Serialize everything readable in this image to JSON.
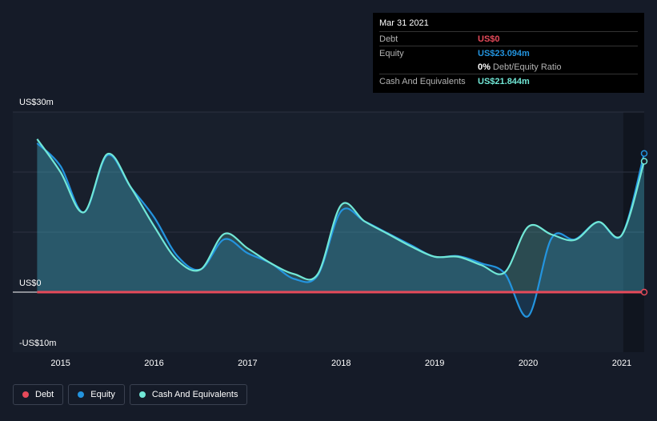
{
  "tooltip": {
    "date": "Mar 31 2021",
    "debt_label": "Debt",
    "debt_value": "US$0",
    "equity_label": "Equity",
    "equity_value": "US$23.094m",
    "ratio_value": "0%",
    "ratio_label": "Debt/Equity Ratio",
    "cash_label": "Cash And Equivalents",
    "cash_value": "US$21.844m"
  },
  "legend": {
    "debt": "Debt",
    "equity": "Equity",
    "cash": "Cash And Equivalents"
  },
  "colors": {
    "debt": "#e64a5a",
    "equity": "#2394df",
    "cash": "#71e7d6",
    "background": "#151b28"
  },
  "chart_data": {
    "type": "line",
    "title": "",
    "xlabel": "",
    "ylabel": "",
    "ylim": [
      -10,
      30
    ],
    "y_tick_labels": [
      "US$30m",
      "US$0",
      "-US$10m"
    ],
    "x_ticks": [
      {
        "label": "2015",
        "t": 2015.0
      },
      {
        "label": "2016",
        "t": 2016.0
      },
      {
        "label": "2017",
        "t": 2017.0
      },
      {
        "label": "2018",
        "t": 2018.0
      },
      {
        "label": "2019",
        "t": 2019.0
      },
      {
        "label": "2020",
        "t": 2020.0
      },
      {
        "label": "2021",
        "t": 2021.0
      }
    ],
    "x_range": [
      2014.49,
      2021.24
    ],
    "series": [
      {
        "name": "Debt",
        "points": [
          [
            2014.75,
            0
          ],
          [
            2021.24,
            0
          ]
        ]
      },
      {
        "name": "Equity",
        "points": [
          [
            2014.75,
            24.8
          ],
          [
            2015.0,
            21.0
          ],
          [
            2015.25,
            13.3
          ],
          [
            2015.5,
            22.8
          ],
          [
            2015.75,
            17.5
          ],
          [
            2016.0,
            12.5
          ],
          [
            2016.25,
            6.0
          ],
          [
            2016.5,
            3.8
          ],
          [
            2016.75,
            8.8
          ],
          [
            2017.0,
            6.5
          ],
          [
            2017.25,
            4.8
          ],
          [
            2017.5,
            2.2
          ],
          [
            2017.75,
            2.8
          ],
          [
            2018.0,
            13.5
          ],
          [
            2018.25,
            11.8
          ],
          [
            2018.5,
            9.8
          ],
          [
            2018.75,
            7.8
          ],
          [
            2019.0,
            5.9
          ],
          [
            2019.25,
            6.0
          ],
          [
            2019.5,
            4.8
          ],
          [
            2019.75,
            3.1
          ],
          [
            2020.0,
            -4.0
          ],
          [
            2020.25,
            9.0
          ],
          [
            2020.5,
            8.8
          ],
          [
            2020.75,
            11.7
          ],
          [
            2021.0,
            9.5
          ],
          [
            2021.24,
            23.1
          ]
        ]
      },
      {
        "name": "Cash And Equivalents",
        "points": [
          [
            2014.75,
            25.5
          ],
          [
            2015.0,
            20.0
          ],
          [
            2015.25,
            13.3
          ],
          [
            2015.5,
            23.0
          ],
          [
            2015.75,
            17.5
          ],
          [
            2016.0,
            11.0
          ],
          [
            2016.25,
            5.3
          ],
          [
            2016.5,
            3.8
          ],
          [
            2016.75,
            9.7
          ],
          [
            2017.0,
            7.3
          ],
          [
            2017.25,
            4.8
          ],
          [
            2017.5,
            3.0
          ],
          [
            2017.75,
            3.0
          ],
          [
            2018.0,
            14.5
          ],
          [
            2018.25,
            11.8
          ],
          [
            2018.5,
            9.7
          ],
          [
            2018.75,
            7.6
          ],
          [
            2019.0,
            5.9
          ],
          [
            2019.25,
            5.9
          ],
          [
            2019.5,
            4.5
          ],
          [
            2019.75,
            3.3
          ],
          [
            2020.0,
            10.9
          ],
          [
            2020.25,
            9.6
          ],
          [
            2020.5,
            8.7
          ],
          [
            2020.75,
            11.7
          ],
          [
            2021.0,
            9.5
          ],
          [
            2021.24,
            21.8
          ]
        ]
      }
    ]
  }
}
